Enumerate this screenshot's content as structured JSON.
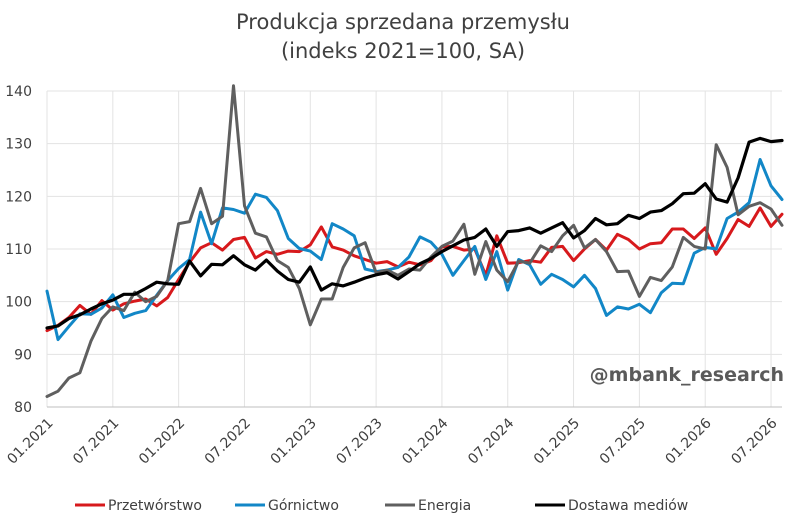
{
  "chart_data": {
    "type": "line",
    "title_lines": [
      "Produkcja sprzedana przemysłu",
      "(indeks 2021=100, SA)"
    ],
    "xlabel": "",
    "ylabel": "",
    "ylim": [
      80,
      140
    ],
    "yticks": [
      80,
      90,
      100,
      110,
      120,
      130,
      140
    ],
    "x_start": "2021-01",
    "n_months": 68,
    "xticks": [
      {
        "month_index": 0,
        "label": "01.2021"
      },
      {
        "month_index": 6,
        "label": "07.2021"
      },
      {
        "month_index": 12,
        "label": "01.2022"
      },
      {
        "month_index": 18,
        "label": "07.2022"
      },
      {
        "month_index": 24,
        "label": "01.2023"
      },
      {
        "month_index": 30,
        "label": "07.2023"
      },
      {
        "month_index": 36,
        "label": "01.2024"
      },
      {
        "month_index": 42,
        "label": "07.2024"
      },
      {
        "month_index": 48,
        "label": "01.2025"
      },
      {
        "month_index": 54,
        "label": "07.2025"
      },
      {
        "month_index": 60,
        "label": "01.2026"
      },
      {
        "month_index": 66,
        "label": "07.2026"
      }
    ],
    "grid": "horizontal-and-vertical",
    "legend_position": "bottom",
    "watermark": "@mbank_research",
    "series": [
      {
        "name": "Przetwórstwo",
        "color": "#d7191c",
        "values": [
          94.5,
          95.5,
          97.0,
          99.3,
          97.6,
          100.2,
          98.4,
          99.6,
          100.1,
          100.5,
          99.2,
          100.8,
          104.2,
          107.5,
          110.2,
          111.2,
          109.8,
          111.8,
          112.2,
          108.3,
          109.5,
          109.0,
          109.6,
          109.5,
          110.8,
          114.2,
          110.4,
          109.8,
          108.7,
          108.0,
          107.3,
          107.6,
          106.6,
          107.5,
          107.0,
          107.8,
          110.4,
          110.5,
          109.8,
          110.0,
          105.0,
          112.5,
          107.3,
          107.4,
          107.8,
          107.5,
          110.3,
          110.5,
          107.8,
          110.0,
          111.8,
          109.8,
          112.8,
          111.8,
          110.0,
          111.0,
          111.2,
          113.8,
          113.8,
          112.0,
          114.0,
          109.0,
          112.0,
          115.6,
          114.3,
          117.8,
          114.3,
          116.6
        ]
      },
      {
        "name": "Górnictwo",
        "color": "#1287c7",
        "values": [
          102.0,
          92.8,
          95.3,
          97.7,
          97.6,
          98.8,
          101.3,
          97.0,
          97.8,
          98.3,
          101.2,
          104.0,
          106.3,
          108.0,
          117.0,
          111.0,
          117.8,
          117.5,
          116.8,
          120.4,
          119.8,
          117.3,
          112.0,
          110.1,
          109.6,
          108.0,
          114.8,
          113.8,
          112.5,
          106.2,
          105.7,
          106.0,
          106.5,
          108.5,
          112.3,
          111.3,
          109.0,
          105.0,
          107.8,
          110.5,
          104.2,
          109.5,
          102.2,
          108.0,
          107.0,
          103.3,
          105.2,
          104.2,
          102.8,
          105.0,
          102.5,
          97.4,
          99.0,
          98.6,
          99.5,
          97.9,
          101.7,
          103.5,
          103.4,
          109.2,
          110.3,
          110.0,
          115.8,
          117.0,
          118.8,
          127.0,
          122.0,
          119.4
        ]
      },
      {
        "name": "Energia",
        "color": "#5f5f5f",
        "values": [
          82.0,
          83.0,
          85.5,
          86.5,
          92.5,
          96.8,
          99.0,
          98.3,
          101.8,
          100.0,
          101.0,
          104.0,
          114.8,
          115.2,
          121.5,
          114.8,
          116.2,
          141.0,
          118.2,
          113.0,
          112.3,
          107.8,
          106.5,
          102.5,
          95.6,
          100.5,
          100.5,
          106.5,
          110.2,
          111.2,
          105.5,
          106.0,
          105.0,
          106.2,
          106.0,
          108.5,
          110.5,
          111.5,
          114.7,
          105.2,
          111.4,
          106.0,
          103.8,
          107.7,
          107.3,
          110.6,
          109.5,
          112.5,
          114.5,
          110.2,
          111.8,
          109.5,
          105.7,
          105.8,
          101.0,
          104.6,
          104.0,
          106.6,
          112.2,
          110.5,
          110.0,
          129.8,
          125.5,
          116.5,
          118.1,
          118.8,
          117.6,
          114.5
        ]
      },
      {
        "name": "Dostawa mediów",
        "color": "#000000",
        "values": [
          95.0,
          95.4,
          96.8,
          97.5,
          98.6,
          99.6,
          100.3,
          101.4,
          101.4,
          102.5,
          103.7,
          103.4,
          103.3,
          107.7,
          104.9,
          107.1,
          107.0,
          108.7,
          107.0,
          106.0,
          107.9,
          105.8,
          104.2,
          103.7,
          106.6,
          102.2,
          103.4,
          103.0,
          103.7,
          104.5,
          105.1,
          105.5,
          104.3,
          105.7,
          107.2,
          108.2,
          109.5,
          110.6,
          111.7,
          112.2,
          113.8,
          110.5,
          113.3,
          113.5,
          114.0,
          113.0,
          114.0,
          115.0,
          112.1,
          113.5,
          115.8,
          114.6,
          114.8,
          116.4,
          115.8,
          117.0,
          117.3,
          118.6,
          120.5,
          120.6,
          122.4,
          119.5,
          118.9,
          123.5,
          130.3,
          131.0,
          130.4,
          130.6
        ]
      }
    ]
  }
}
